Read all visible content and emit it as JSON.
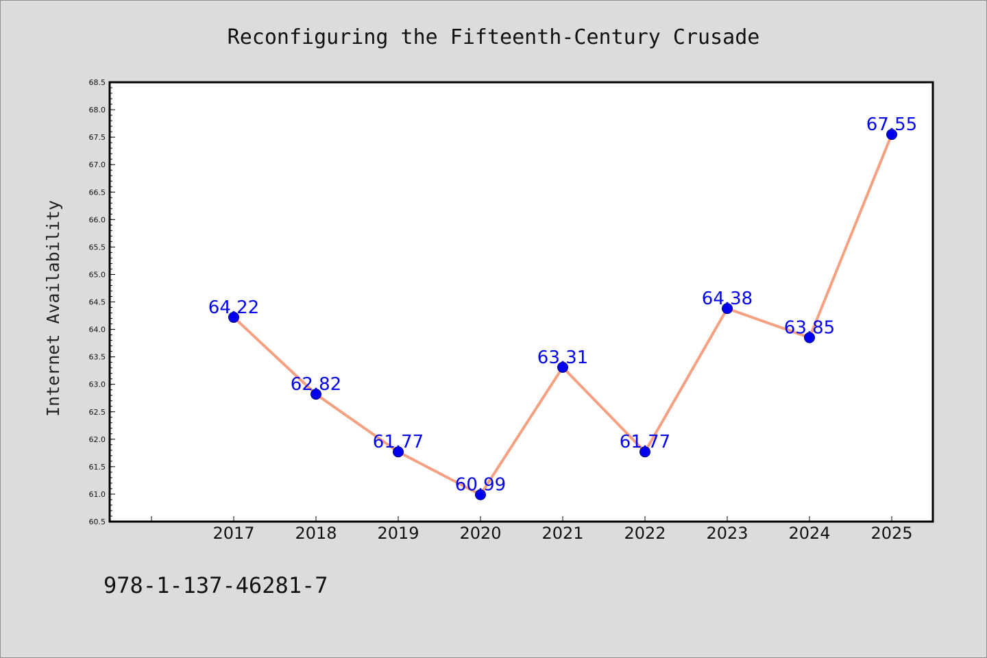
{
  "chart_data": {
    "type": "line",
    "title": "Reconfiguring the Fifteenth-Century Crusade",
    "xlabel": "",
    "ylabel": "Internet Availability",
    "categories": [
      "2017",
      "2018",
      "2019",
      "2020",
      "2021",
      "2022",
      "2023",
      "2024",
      "2025"
    ],
    "series": [
      {
        "values": [
          64.22,
          62.82,
          61.77,
          60.99,
          63.31,
          61.77,
          64.38,
          63.85,
          67.55
        ],
        "data_labels": [
          "64.22",
          "62.82",
          "61.77",
          "60.99",
          "63.31",
          "61.77",
          "64.38",
          "63.85",
          "67.55"
        ],
        "line_color": "#f5a080",
        "marker_color": "#0000ee",
        "label_color": "#0000ee"
      }
    ],
    "ylim": [
      60.5,
      68.5
    ],
    "y_ticks": [
      "60.5",
      "61.0",
      "61.5",
      "62.0",
      "62.5",
      "63.0",
      "63.5",
      "64.0",
      "64.5",
      "65.0",
      "65.5",
      "66.0",
      "66.5",
      "67.0",
      "67.5",
      "68.0",
      "68.5"
    ],
    "grid": false,
    "legend": "none"
  },
  "footer": {
    "isbn": "978-1-137-46281-7"
  },
  "colors": {
    "background": "#dcdcdc",
    "plot_background": "#ffffff",
    "axes": "#000000"
  }
}
